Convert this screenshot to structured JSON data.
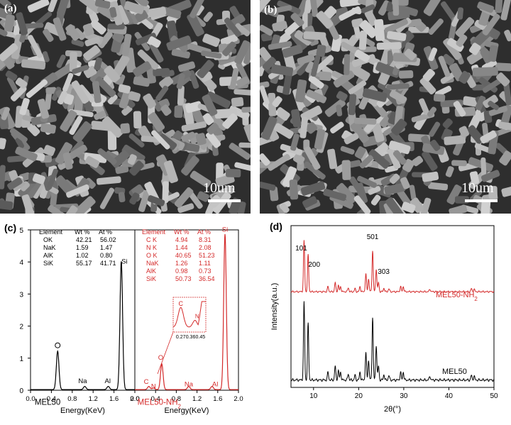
{
  "panels": {
    "a": {
      "label": "(a)",
      "scale": "10um"
    },
    "b": {
      "label": "(b)",
      "scale": "10um"
    },
    "c": {
      "label": "(c)"
    },
    "d": {
      "label": "(d)"
    }
  },
  "chart_data": [
    {
      "id": "c-left",
      "type": "line",
      "xlabel": "Energy(KeV)",
      "ylabel": "",
      "xlim": [
        0.0,
        2.0
      ],
      "ylim": [
        0,
        5
      ],
      "x_ticks": [
        "0.0",
        "0.4",
        "0.8",
        "1.2",
        "1.6",
        "2.0"
      ],
      "y_ticks": [
        "0",
        "1",
        "2",
        "3",
        "4",
        "5"
      ],
      "series": [
        {
          "name": "MEL50",
          "color": "#000000",
          "peaks": [
            [
              0.52,
              1.2
            ],
            [
              1.04,
              0.1
            ],
            [
              1.49,
              0.1
            ],
            [
              1.74,
              4.0
            ]
          ]
        }
      ],
      "annotations": [
        {
          "text": "O",
          "x": 0.52,
          "y": 1.4
        },
        {
          "text": "Na",
          "x": 1.0,
          "y": 0.22
        },
        {
          "text": "Al",
          "x": 1.48,
          "y": 0.22
        },
        {
          "text": "Si",
          "x": 1.8,
          "y": 3.95
        },
        {
          "text": "MEL50",
          "x": 0.08,
          "y": -0.45
        }
      ],
      "table": {
        "headers": [
          "Element",
          "Wt %",
          "At %"
        ],
        "rows": [
          [
            "OK",
            "42.21",
            "56.02"
          ],
          [
            "NaK",
            "1.59",
            "1.47"
          ],
          [
            "AlK",
            "1.02",
            "0.80"
          ],
          [
            "SiK",
            "55.17",
            "41.71"
          ]
        ]
      }
    },
    {
      "id": "c-right",
      "type": "line",
      "xlabel": "Energy(KeV)",
      "ylabel": "",
      "xlim": [
        0.0,
        2.0
      ],
      "ylim": [
        0,
        5
      ],
      "x_ticks": [
        "0.0",
        "0.4",
        "0.8",
        "1.2",
        "1.6",
        "2.0"
      ],
      "series": [
        {
          "name": "MEL50-NH2",
          "color": "#d42a2a",
          "peaks": [
            [
              0.27,
              0.1
            ],
            [
              0.36,
              0.05
            ],
            [
              0.52,
              0.8
            ],
            [
              1.04,
              0.1
            ],
            [
              1.49,
              0.1
            ],
            [
              1.74,
              4.85
            ]
          ]
        }
      ],
      "annotations": [
        {
          "text": "C",
          "x": 0.22,
          "y": 0.2
        },
        {
          "text": "N",
          "x": 0.36,
          "y": 0.06
        },
        {
          "text": "O",
          "x": 0.5,
          "y": 0.95
        },
        {
          "text": "Na",
          "x": 1.04,
          "y": 0.12
        },
        {
          "text": "Al",
          "x": 1.55,
          "y": 0.12
        },
        {
          "text": "Si",
          "x": 1.74,
          "y": 4.95
        },
        {
          "text": "MEL50-NH",
          "x": 0.05,
          "y": -0.45
        }
      ],
      "table": {
        "headers": [
          "Element",
          "Wt %",
          "At %"
        ],
        "rows": [
          [
            "C K",
            "4.94",
            "8.31"
          ],
          [
            "N K",
            "1.44",
            "2.08"
          ],
          [
            "O K",
            "40.65",
            "51.23"
          ],
          [
            "NaK",
            "1.26",
            "1.11"
          ],
          [
            "AlK",
            "0.98",
            "0.73"
          ],
          [
            "SiK",
            "50.73",
            "36.54"
          ]
        ]
      },
      "inset": {
        "x_ticks": [
          "0.27",
          "0.36",
          "0.45"
        ],
        "labels": [
          "C",
          "N"
        ]
      }
    },
    {
      "id": "d",
      "type": "line",
      "xlabel": "2θ(°)",
      "ylabel": "Intensity(a.u.)",
      "xlim": [
        5,
        50
      ],
      "x_ticks": [
        "10",
        "20",
        "30",
        "40",
        "50"
      ],
      "series": [
        {
          "name": "MEL50-NH",
          "color": "#d42a2a"
        },
        {
          "name": "MEL50",
          "color": "#000000"
        }
      ],
      "peaks_2theta": [
        [
          7.9,
          1.0
        ],
        [
          8.8,
          0.72
        ],
        [
          13.2,
          0.1
        ],
        [
          14.8,
          0.18
        ],
        [
          15.5,
          0.12
        ],
        [
          16.0,
          0.1
        ],
        [
          17.7,
          0.08
        ],
        [
          19.2,
          0.06
        ],
        [
          20.3,
          0.1
        ],
        [
          21.6,
          0.35
        ],
        [
          22.2,
          0.25
        ],
        [
          23.1,
          0.8
        ],
        [
          23.9,
          0.45
        ],
        [
          24.4,
          0.18
        ],
        [
          25.6,
          0.07
        ],
        [
          26.7,
          0.06
        ],
        [
          29.3,
          0.1
        ],
        [
          29.9,
          0.1
        ],
        [
          35.8,
          0.05
        ],
        [
          45.0,
          0.06
        ],
        [
          45.6,
          0.05
        ]
      ],
      "annotations": [
        {
          "text": "101",
          "x": 7.9
        },
        {
          "text": "200",
          "x": 9.2
        },
        {
          "text": "501",
          "x": 23.1
        },
        {
          "text": "303",
          "x": 24.6
        }
      ]
    }
  ]
}
